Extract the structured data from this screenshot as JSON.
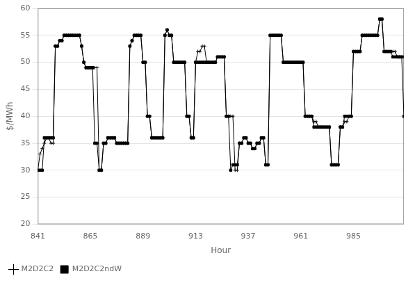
{
  "chart_data": {
    "type": "line",
    "xlabel": "Hour",
    "ylabel": "$/MWh",
    "xlim": [
      841,
      1008
    ],
    "ylim": [
      20,
      60
    ],
    "xticks": [
      841,
      865,
      889,
      913,
      937,
      961,
      985
    ],
    "yticks": [
      20,
      25,
      30,
      35,
      40,
      45,
      50,
      55,
      60
    ],
    "grid": true,
    "legend": "lower left",
    "x": [
      841,
      842,
      843,
      844,
      845,
      846,
      847,
      848,
      849,
      850,
      851,
      852,
      853,
      854,
      855,
      856,
      857,
      858,
      859,
      860,
      861,
      862,
      863,
      864,
      865,
      866,
      867,
      868,
      869,
      870,
      871,
      872,
      873,
      874,
      875,
      876,
      877,
      878,
      879,
      880,
      881,
      882,
      883,
      884,
      885,
      886,
      887,
      888,
      889,
      890,
      891,
      892,
      893,
      894,
      895,
      896,
      897,
      898,
      899,
      900,
      901,
      902,
      903,
      904,
      905,
      906,
      907,
      908,
      909,
      910,
      911,
      912,
      913,
      914,
      915,
      916,
      917,
      918,
      919,
      920,
      921,
      922,
      923,
      924,
      925,
      926,
      927,
      928,
      929,
      930,
      931,
      932,
      933,
      934,
      935,
      936,
      937,
      938,
      939,
      940,
      941,
      942,
      943,
      944,
      945,
      946,
      947,
      948,
      949,
      950,
      951,
      952,
      953,
      954,
      955,
      956,
      957,
      958,
      959,
      960,
      961,
      962,
      963,
      964,
      965,
      966,
      967,
      968,
      969,
      970,
      971,
      972,
      973,
      974,
      975,
      976,
      977,
      978,
      979,
      980,
      981,
      982,
      983,
      984,
      985,
      986,
      987,
      988,
      989,
      990,
      991,
      992,
      993,
      994,
      995,
      996,
      997,
      998,
      999,
      1000,
      1001,
      1002,
      1003,
      1004,
      1005,
      1006,
      1007,
      1008
    ],
    "series": [
      {
        "name": "M2D2C2",
        "color": "#000000",
        "marker": "plus",
        "values": [
          30,
          33,
          34,
          35,
          36,
          36,
          35,
          35,
          53,
          53,
          54,
          54,
          55,
          55,
          55,
          55,
          55,
          55,
          55,
          55,
          53,
          50,
          49,
          49,
          49,
          49,
          49,
          49,
          30,
          30,
          35,
          35,
          36,
          36,
          36,
          36,
          35,
          35,
          35,
          35,
          35,
          35,
          53,
          54,
          55,
          55,
          55,
          55,
          50,
          50,
          40,
          40,
          36,
          36,
          36,
          36,
          36,
          36,
          55,
          56,
          55,
          55,
          50,
          50,
          50,
          50,
          50,
          50,
          40,
          40,
          36,
          36,
          50,
          52,
          52,
          53,
          53,
          50,
          50,
          50,
          50,
          50,
          51,
          51,
          51,
          51,
          40,
          40,
          40,
          40,
          30,
          30,
          35,
          35,
          36,
          36,
          35,
          35,
          34,
          34,
          35,
          35,
          36,
          36,
          31,
          31,
          55,
          55,
          55,
          55,
          55,
          55,
          50,
          50,
          50,
          50,
          50,
          50,
          50,
          50,
          50,
          50,
          40,
          40,
          40,
          40,
          39,
          39,
          38,
          38,
          38,
          38,
          38,
          38,
          31,
          31,
          31,
          31,
          38,
          38,
          39,
          39,
          40,
          40,
          52,
          52,
          52,
          52,
          55,
          55,
          55,
          55,
          55,
          55,
          55,
          55,
          58,
          58,
          52,
          52,
          52,
          52,
          52,
          52,
          51,
          51,
          51,
          51
        ]
      },
      {
        "name": "M2D2C2ndW",
        "color": "#000000",
        "marker": "square",
        "values": [
          30,
          30,
          30,
          36,
          36,
          36,
          36,
          36,
          53,
          53,
          54,
          54,
          55,
          55,
          55,
          55,
          55,
          55,
          55,
          55,
          53,
          50,
          49,
          49,
          49,
          49,
          35,
          35,
          30,
          30,
          35,
          35,
          36,
          36,
          36,
          36,
          35,
          35,
          35,
          35,
          35,
          35,
          53,
          54,
          55,
          55,
          55,
          55,
          50,
          50,
          40,
          40,
          36,
          36,
          36,
          36,
          36,
          36,
          55,
          56,
          55,
          55,
          50,
          50,
          50,
          50,
          50,
          50,
          40,
          40,
          36,
          36,
          50,
          50,
          50,
          50,
          50,
          50,
          50,
          50,
          50,
          50,
          51,
          51,
          51,
          51,
          40,
          40,
          30,
          31,
          31,
          31,
          35,
          35,
          36,
          36,
          35,
          35,
          34,
          34,
          35,
          35,
          36,
          36,
          31,
          31,
          55,
          55,
          55,
          55,
          55,
          55,
          50,
          50,
          50,
          50,
          50,
          50,
          50,
          50,
          50,
          50,
          40,
          40,
          40,
          40,
          38,
          38,
          38,
          38,
          38,
          38,
          38,
          38,
          31,
          31,
          31,
          31,
          38,
          38,
          40,
          40,
          40,
          40,
          52,
          52,
          52,
          52,
          55,
          55,
          55,
          55,
          55,
          55,
          55,
          55,
          58,
          58,
          52,
          52,
          52,
          52,
          51,
          51,
          51,
          51,
          51,
          40
        ]
      }
    ]
  }
}
